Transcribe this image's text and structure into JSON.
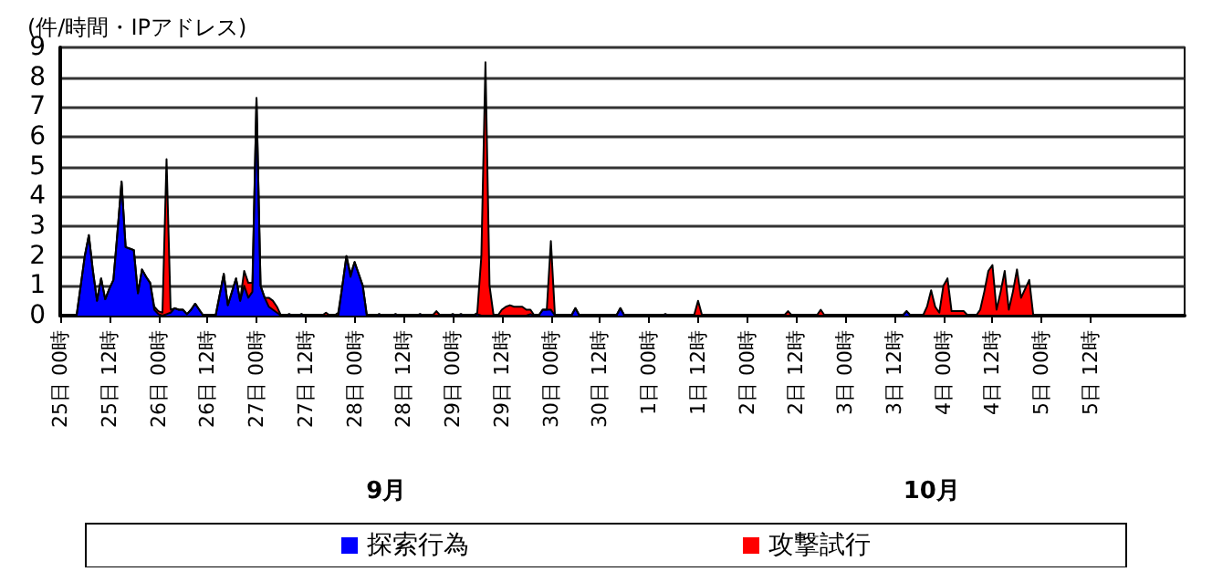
{
  "chart_data": {
    "type": "area",
    "stacked": true,
    "ylabel": "(件/時間・IPアドレス)",
    "categories": [
      "25日 00時",
      null,
      null,
      null,
      null,
      null,
      null,
      null,
      null,
      null,
      null,
      null,
      "25日 12時",
      null,
      null,
      null,
      null,
      null,
      null,
      null,
      null,
      null,
      null,
      null,
      "26日 00時",
      null,
      null,
      null,
      null,
      null,
      null,
      null,
      null,
      null,
      null,
      null,
      "26日 12時",
      null,
      null,
      null,
      null,
      null,
      null,
      null,
      null,
      null,
      null,
      null,
      "27日 00時",
      null,
      null,
      null,
      null,
      null,
      null,
      null,
      null,
      null,
      null,
      null,
      "27日 12時",
      null,
      null,
      null,
      null,
      null,
      null,
      null,
      null,
      null,
      null,
      null,
      "28日 00時",
      null,
      null,
      null,
      null,
      null,
      null,
      null,
      null,
      null,
      null,
      null,
      "28日 12時",
      null,
      null,
      null,
      null,
      null,
      null,
      null,
      null,
      null,
      null,
      null,
      "29日 00時",
      null,
      null,
      null,
      null,
      null,
      null,
      null,
      null,
      null,
      null,
      null,
      "29日 12時",
      null,
      null,
      null,
      null,
      null,
      null,
      null,
      null,
      null,
      null,
      null,
      "30日 00時",
      null,
      null,
      null,
      null,
      null,
      null,
      null,
      null,
      null,
      null,
      null,
      "30日 12時",
      null,
      null,
      null,
      null,
      null,
      null,
      null,
      null,
      null,
      null,
      null,
      "1日 00時",
      null,
      null,
      null,
      null,
      null,
      null,
      null,
      null,
      null,
      null,
      null,
      "1日 12時",
      null,
      null,
      null,
      null,
      null,
      null,
      null,
      null,
      null,
      null,
      null,
      "2日 00時",
      null,
      null,
      null,
      null,
      null,
      null,
      null,
      null,
      null,
      null,
      null,
      "2日 12時",
      null,
      null,
      null,
      null,
      null,
      null,
      null,
      null,
      null,
      null,
      null,
      "3日 00時",
      null,
      null,
      null,
      null,
      null,
      null,
      null,
      null,
      null,
      null,
      null,
      "3日 12時",
      null,
      null,
      null,
      null,
      null,
      null,
      null,
      null,
      null,
      null,
      null,
      "4日 00時",
      null,
      null,
      null,
      null,
      null,
      null,
      null,
      null,
      null,
      null,
      null,
      "4日 12時",
      null,
      null,
      null,
      null,
      null,
      null,
      null,
      null,
      null,
      null,
      null,
      "5日 00時",
      null,
      null,
      null,
      null,
      null,
      null,
      null,
      null,
      null,
      null,
      null,
      "5日 12時",
      null,
      null,
      null,
      null,
      null,
      null,
      null,
      null,
      null,
      null,
      null,
      null,
      null,
      null,
      null,
      null,
      null,
      null,
      null,
      null,
      null,
      null,
      null
    ],
    "series": [
      {
        "name": "探索行為",
        "color": "#0000ff",
        "values": [
          0,
          0,
          0,
          0,
          0,
          1.0,
          2.0,
          2.7,
          1.5,
          0.5,
          1.25,
          0.55,
          0.9,
          1.2,
          2.8,
          4.5,
          2.3,
          2.25,
          2.2,
          0.75,
          1.55,
          1.3,
          1.1,
          0.2,
          0.05,
          0,
          0.05,
          0.1,
          0.25,
          0.2,
          0.2,
          0.05,
          0.2,
          0.4,
          0.2,
          0,
          0,
          0,
          0,
          0.7,
          1.4,
          0.35,
          0.8,
          1.25,
          0.5,
          1.0,
          0.6,
          0.8,
          7.3,
          1.0,
          0.6,
          0.3,
          0.2,
          0.1,
          0,
          0,
          0.05,
          0,
          0,
          0.05,
          0,
          0,
          0,
          0,
          0,
          0,
          0,
          0,
          0,
          1.0,
          2.0,
          1.3,
          1.8,
          1.4,
          1.0,
          0,
          0,
          0,
          0.05,
          0,
          0,
          0,
          0.05,
          0,
          0,
          0,
          0,
          0,
          0.05,
          0,
          0,
          0,
          0,
          0,
          0,
          0,
          0.05,
          0,
          0.05,
          0,
          0,
          0,
          0.05,
          0,
          0,
          0,
          0,
          0,
          0,
          0,
          0,
          0,
          0,
          0,
          0,
          0.05,
          0,
          0,
          0.2,
          0.2,
          0.2,
          0,
          0,
          0,
          0,
          0,
          0.25,
          0,
          0,
          0,
          0,
          0,
          0,
          0,
          0,
          0,
          0,
          0.25,
          0,
          0,
          0,
          0,
          0,
          0,
          0,
          0,
          0,
          0,
          0.05,
          0,
          0,
          0,
          0,
          0,
          0,
          0,
          0,
          0,
          0,
          0,
          0,
          0,
          0,
          0,
          0,
          0,
          0,
          0,
          0,
          0,
          0,
          0,
          0,
          0,
          0,
          0,
          0,
          0,
          0,
          0,
          0,
          0,
          0,
          0,
          0,
          0,
          0,
          0,
          0,
          0,
          0,
          0,
          0,
          0,
          0,
          0,
          0,
          0,
          0,
          0,
          0,
          0,
          0,
          0,
          0,
          0,
          0,
          0.15,
          0,
          0,
          0,
          0,
          0,
          0,
          0,
          0,
          0,
          0,
          0,
          0,
          0,
          0,
          0,
          0,
          0,
          0,
          0,
          0,
          0,
          0,
          0,
          0,
          0,
          0,
          0,
          0,
          0,
          0,
          0,
          0,
          0,
          0,
          0,
          0,
          0,
          0,
          0,
          0,
          0,
          0,
          0,
          0,
          0,
          0,
          0,
          0,
          0,
          0,
          0,
          0,
          0,
          0,
          0,
          0,
          0,
          0,
          0,
          0,
          0,
          0,
          0,
          0,
          0,
          0,
          0,
          0
        ]
      },
      {
        "name": "攻撃試行",
        "color": "#ff0000",
        "values": [
          0,
          0,
          0,
          0,
          0,
          0,
          0,
          0,
          0,
          0,
          0,
          0,
          0,
          0,
          0,
          0,
          0,
          0,
          0,
          0,
          0,
          0,
          0,
          0.1,
          0.1,
          0.1,
          5.2,
          0.1,
          0,
          0,
          0,
          0,
          0,
          0,
          0,
          0,
          0,
          0,
          0,
          0,
          0,
          0,
          0,
          0,
          0,
          0.5,
          0.5,
          0.3,
          0,
          0,
          0,
          0.3,
          0.3,
          0.2,
          0,
          0,
          0,
          0,
          0,
          0,
          0,
          0,
          0,
          0,
          0,
          0.1,
          0,
          0,
          0.1,
          0,
          0,
          0.1,
          0,
          0,
          0,
          0,
          0,
          0,
          0,
          0,
          0,
          0,
          0,
          0,
          0,
          0,
          0,
          0,
          0,
          0,
          0,
          0,
          0.15,
          0,
          0,
          0,
          0,
          0,
          0,
          0,
          0,
          0,
          0.05,
          2,
          8.5,
          1,
          0,
          0,
          0.2,
          0.3,
          0.35,
          0.3,
          0.3,
          0.3,
          0.2,
          0.15,
          0,
          0,
          0,
          0,
          2.3,
          0,
          0,
          0,
          0,
          0,
          0,
          0,
          0,
          0,
          0,
          0,
          0,
          0,
          0,
          0,
          0,
          0,
          0,
          0,
          0,
          0,
          0,
          0,
          0,
          0,
          0,
          0,
          0,
          0,
          0,
          0,
          0,
          0,
          0,
          0,
          0.5,
          0,
          0,
          0,
          0,
          0,
          0,
          0,
          0,
          0,
          0,
          0,
          0,
          0,
          0,
          0,
          0,
          0,
          0,
          0,
          0,
          0,
          0.15,
          0,
          0,
          0,
          0,
          0,
          0,
          0,
          0.2,
          0,
          0,
          0,
          0,
          0,
          0,
          0,
          0,
          0,
          0,
          0,
          0,
          0,
          0,
          0,
          0,
          0,
          0,
          0,
          0,
          0,
          0,
          0,
          0,
          0,
          0.3,
          0.85,
          0.3,
          0.1,
          1.0,
          1.25,
          0.15,
          0.15,
          0.15,
          0.15,
          0,
          0,
          0,
          0.2,
          0.8,
          1.5,
          1.7,
          0.2,
          0.8,
          1.5,
          0.2,
          0.8,
          1.55,
          0.6,
          0.9,
          1.2,
          0,
          0,
          0,
          0,
          0,
          0,
          0,
          0,
          0,
          0,
          0,
          0,
          0,
          0,
          0,
          0,
          0,
          0,
          0,
          0,
          0,
          0,
          0,
          0,
          0,
          0,
          0,
          0,
          0,
          0,
          0,
          0,
          0,
          0,
          0,
          0,
          0,
          0
        ]
      }
    ],
    "ylim": [
      0,
      9
    ],
    "yticks": [
      0,
      1,
      2,
      3,
      4,
      5,
      6,
      7,
      8,
      9
    ],
    "annotations": [
      "9月",
      "10月"
    ],
    "grid": "y",
    "legend": "bottom",
    "marker": "none"
  }
}
